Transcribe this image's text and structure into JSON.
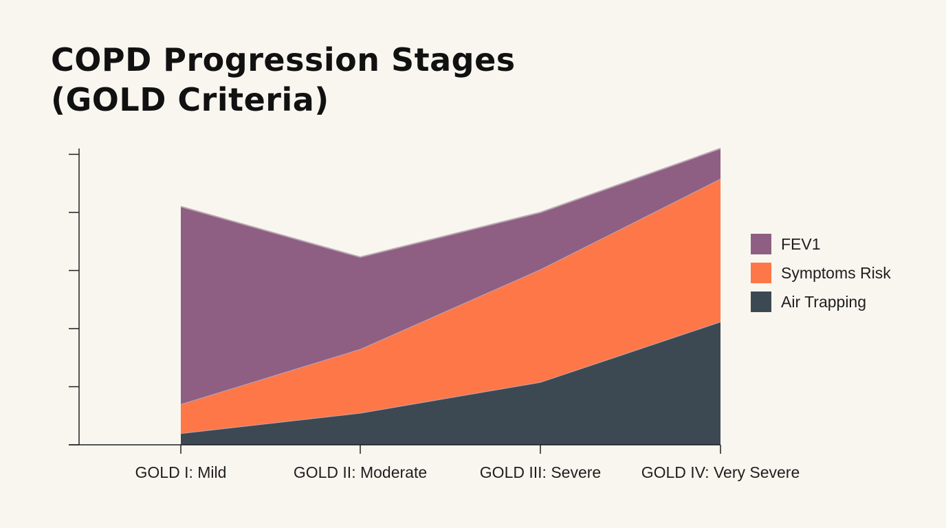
{
  "chart_data": {
    "type": "area",
    "stacked": true,
    "title_line1": "COPD Progression Stages",
    "title_line2": "(GOLD Criteria)",
    "categories": [
      "GOLD I: Mild",
      "GOLD II: Moderate",
      "GOLD III: Severe",
      "GOLD IV: Very Severe"
    ],
    "ylim": [
      0,
      5.1
    ],
    "y_ticks": [
      0,
      1,
      2,
      3,
      4,
      5
    ],
    "y_tick_labels_shown": false,
    "grid": false,
    "legend_position": "right",
    "series": [
      {
        "name": "Air Trapping",
        "values": [
          0.2,
          0.55,
          1.08,
          2.12
        ],
        "color": "#3d4952"
      },
      {
        "name": "Symptoms Risk",
        "values": [
          0.5,
          1.1,
          1.94,
          2.46
        ],
        "color": "#fe7748"
      },
      {
        "name": "FEV1",
        "values": [
          3.4,
          1.58,
          0.98,
          0.52
        ],
        "color": "#8e5f82"
      }
    ],
    "legend_order": [
      "FEV1",
      "Symptoms Risk",
      "Air Trapping"
    ]
  }
}
